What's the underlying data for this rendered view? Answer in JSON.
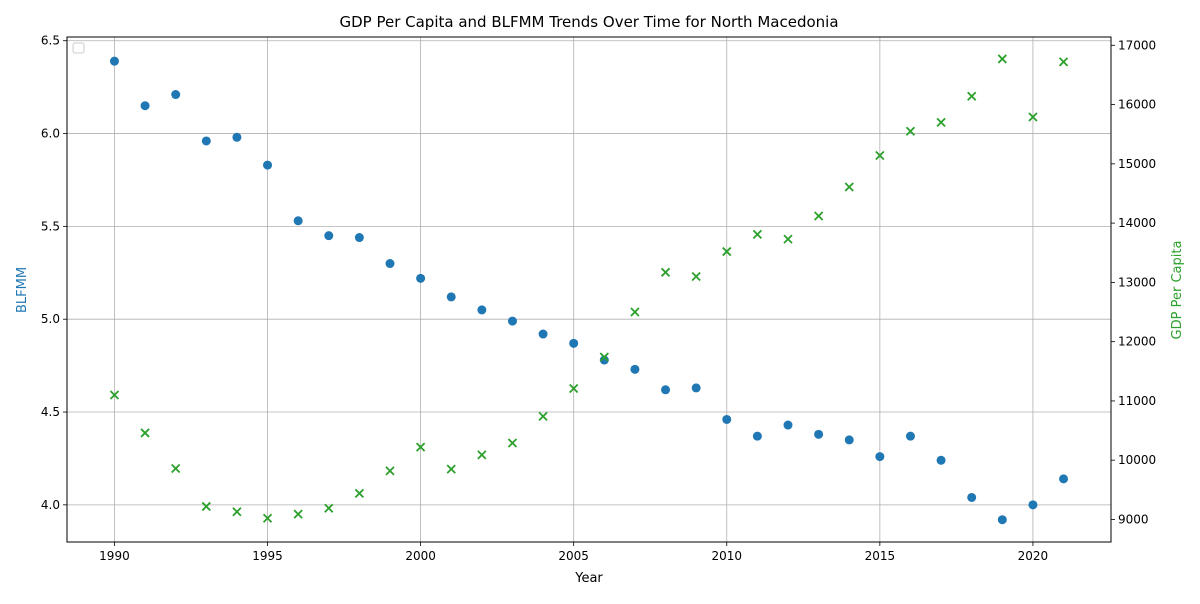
{
  "chart_data": {
    "type": "scatter",
    "title": "GDP Per Capita and BLFMM Trends Over Time for North Macedonia",
    "xlabel": "Year",
    "ylabel_left": "BLFMM",
    "ylabel_right": "GDP Per Capita",
    "grid": true,
    "legend": "upper-left (empty)",
    "x": [
      1990,
      1991,
      1992,
      1993,
      1994,
      1995,
      1996,
      1997,
      1998,
      1999,
      2000,
      2001,
      2002,
      2003,
      2004,
      2005,
      2006,
      2007,
      2008,
      2009,
      2010,
      2011,
      2012,
      2013,
      2014,
      2015,
      2016,
      2017,
      2018,
      2019,
      2020,
      2021
    ],
    "xlim": [
      1988.45,
      2022.55
    ],
    "xticks": [
      1990,
      1995,
      2000,
      2005,
      2010,
      2015,
      2020
    ],
    "series": [
      {
        "name": "BLFMM",
        "axis": "left",
        "marker": "circle",
        "color": "#1f77b4",
        "values": [
          6.39,
          6.15,
          6.21,
          5.96,
          5.98,
          5.83,
          5.53,
          5.45,
          5.44,
          5.3,
          5.22,
          5.12,
          5.05,
          4.99,
          4.92,
          4.87,
          4.78,
          4.73,
          4.62,
          4.63,
          4.46,
          4.37,
          4.43,
          4.38,
          4.35,
          4.26,
          4.37,
          4.24,
          4.04,
          3.92,
          4.0,
          4.14
        ]
      },
      {
        "name": "GDP Per Capita",
        "axis": "right",
        "marker": "x",
        "color": "#2ca02c",
        "values": [
          11100,
          10460,
          9860,
          9220,
          9130,
          9020,
          9090,
          9190,
          9440,
          9820,
          10220,
          9850,
          10090,
          10290,
          10740,
          11210,
          11740,
          12500,
          13170,
          13100,
          13520,
          13810,
          13730,
          14120,
          14610,
          15140,
          15550,
          15700,
          16140,
          16770,
          15790,
          16720
        ]
      }
    ],
    "ylim_left": [
      3.8,
      6.52
    ],
    "yticks_left": [
      "4.0",
      "4.5",
      "5.0",
      "5.5",
      "6.0",
      "6.5"
    ],
    "ylim_right": [
      8620,
      17140
    ],
    "yticks_right": [
      "9000",
      "10000",
      "11000",
      "12000",
      "13000",
      "14000",
      "15000",
      "16000",
      "17000"
    ]
  }
}
